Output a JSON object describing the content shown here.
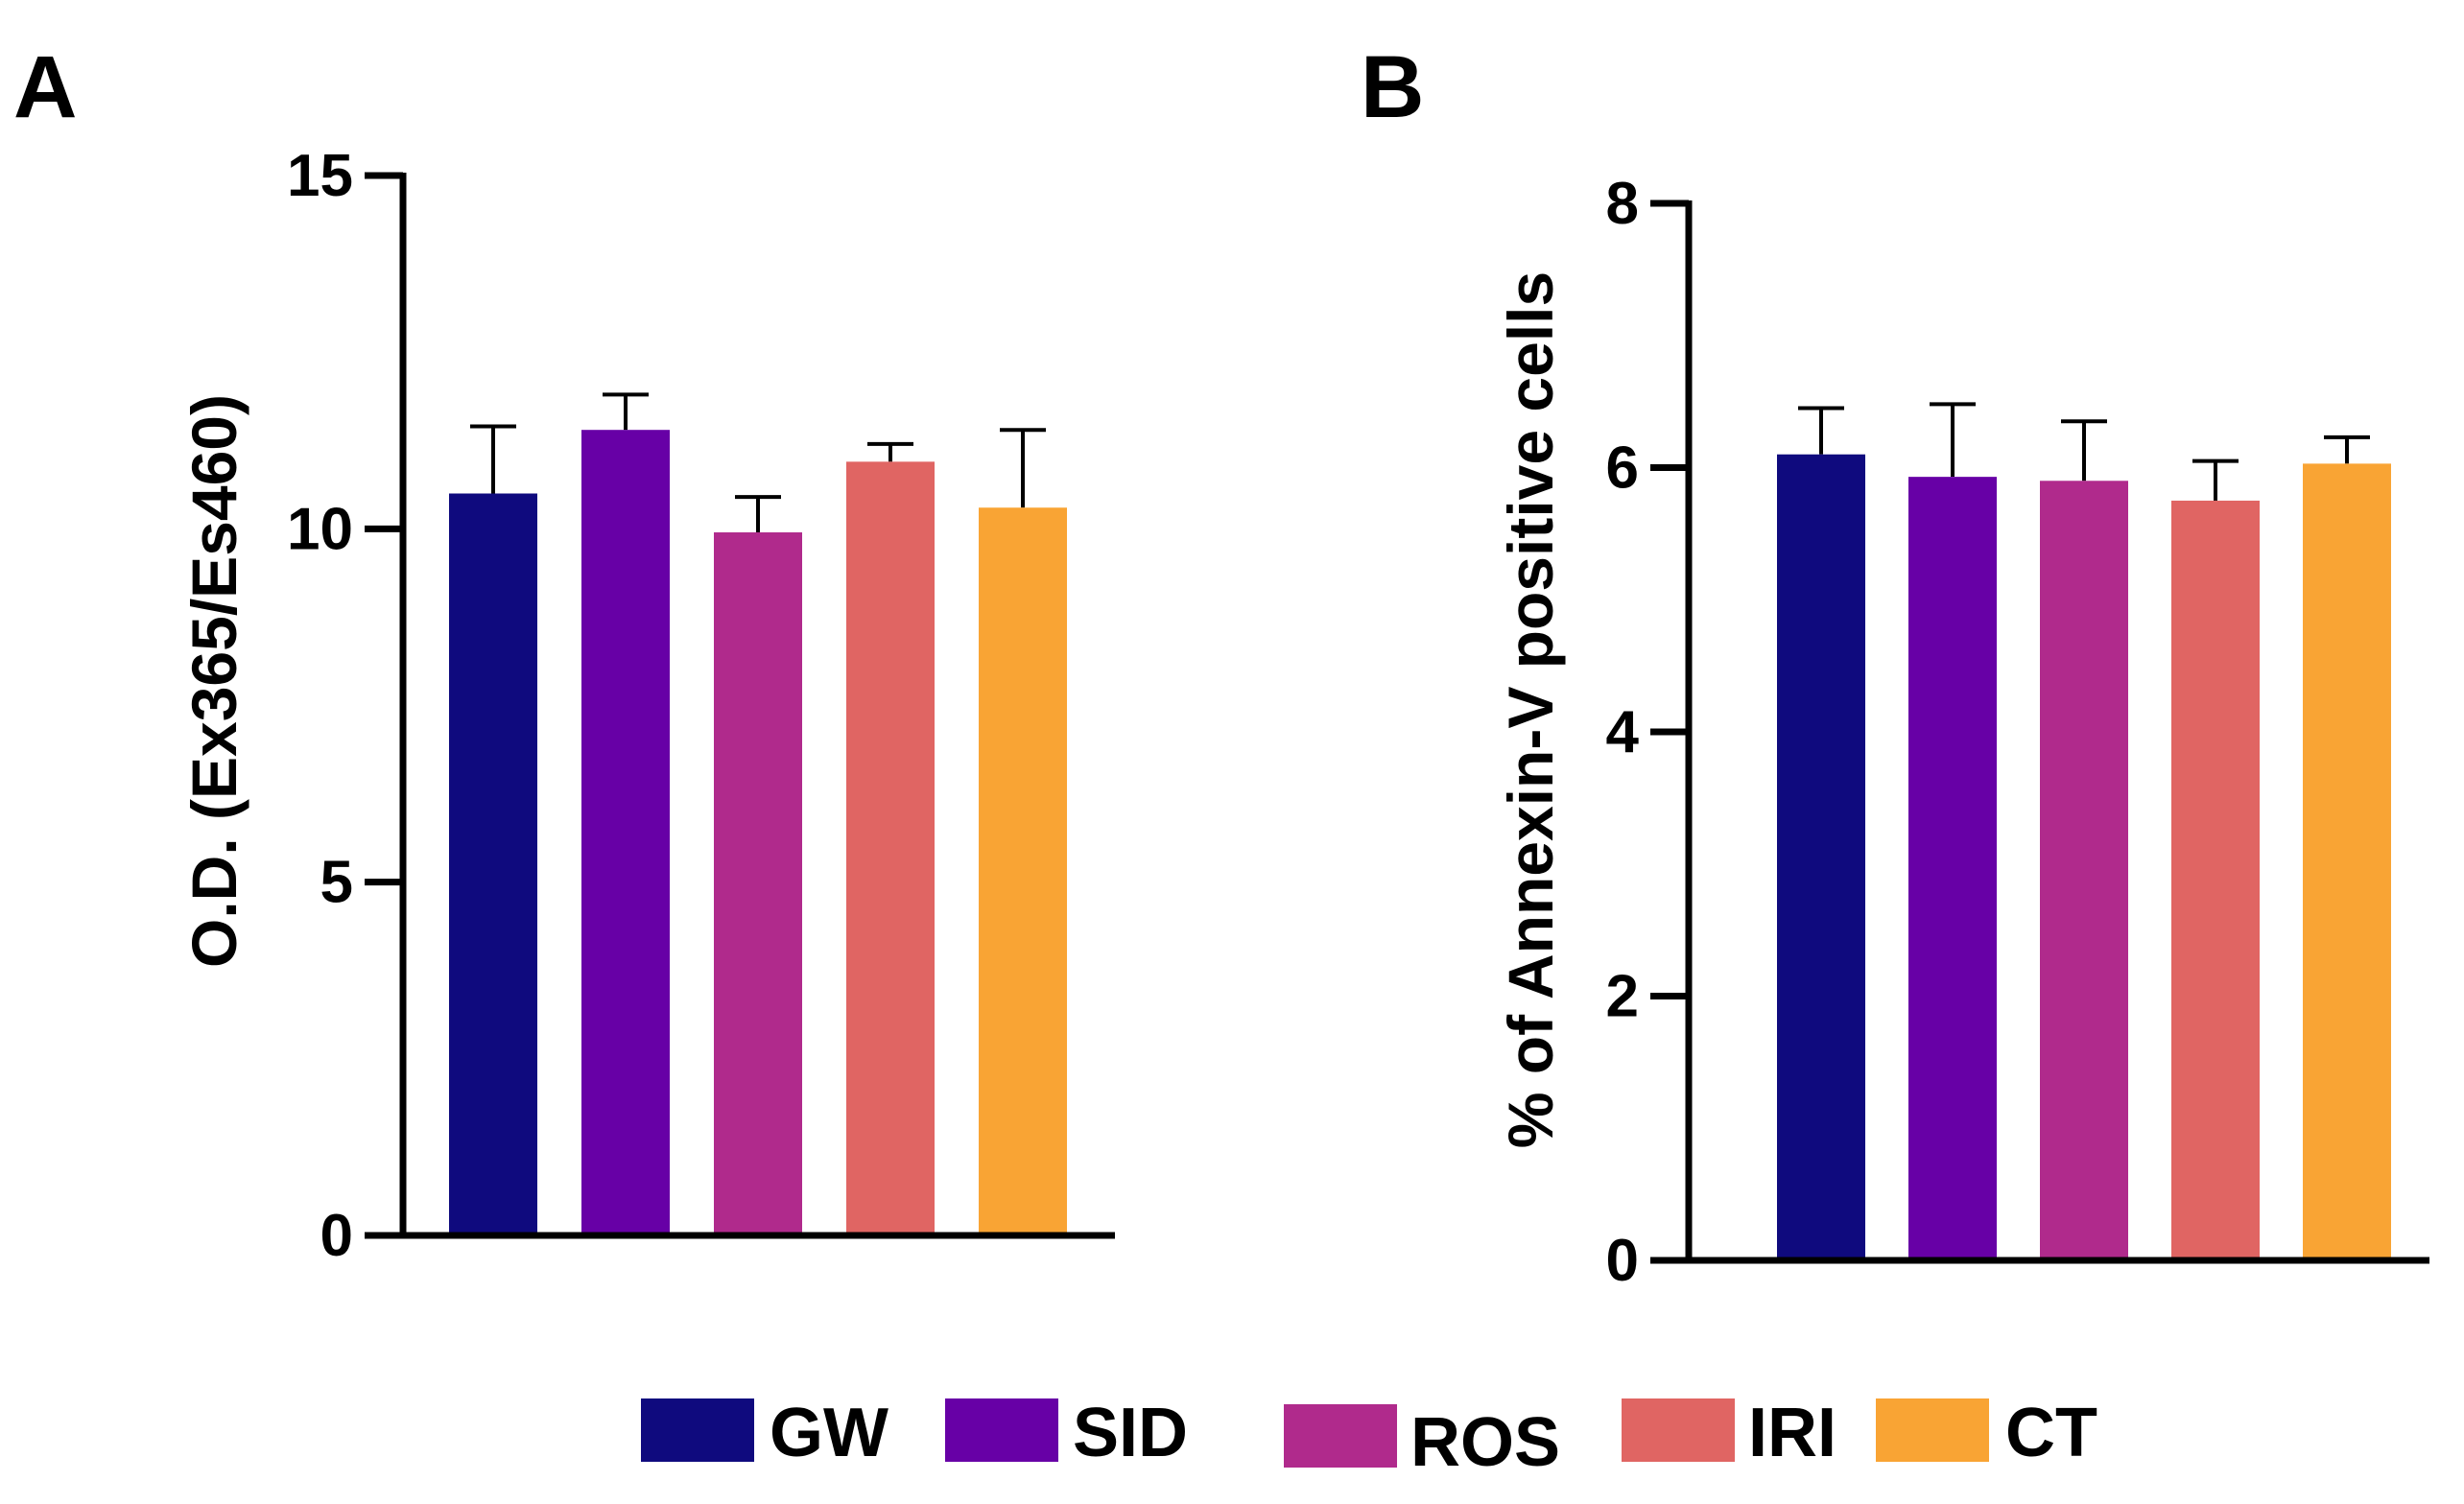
{
  "legend": {
    "items": [
      {
        "label": "GW",
        "color": "#0F0A7E"
      },
      {
        "label": "SID",
        "color": "#6700A6"
      },
      {
        "label": "ROS",
        "color": "#B02A8C"
      },
      {
        "label": "IRI",
        "color": "#E06563"
      },
      {
        "label": "CT",
        "color": "#F9A434"
      }
    ]
  },
  "chart_data": [
    {
      "panel": "A",
      "type": "bar",
      "title": "",
      "xlabel": "",
      "ylabel": "O.D. (Ex365/Es460)",
      "ylim": [
        0,
        15
      ],
      "yticks": [
        0,
        5,
        10,
        15
      ],
      "yticklabels": [
        "0",
        "5",
        "10",
        "15"
      ],
      "categories": [
        "GW",
        "SID",
        "ROS",
        "IRI",
        "CT"
      ],
      "values": [
        10.5,
        11.4,
        9.95,
        10.95,
        10.3
      ],
      "errors": [
        0.95,
        0.5,
        0.5,
        0.25,
        1.1
      ],
      "colors": [
        "#0F0A7E",
        "#6700A6",
        "#B02A8C",
        "#E06563",
        "#F9A434"
      ]
    },
    {
      "panel": "B",
      "type": "bar",
      "title": "",
      "xlabel": "",
      "ylabel": "% of Annexin-V positive cells",
      "ylim": [
        0,
        8
      ],
      "yticks": [
        0,
        2,
        4,
        6,
        8
      ],
      "yticklabels": [
        "0",
        "2",
        "4",
        "6",
        "8"
      ],
      "categories": [
        "GW",
        "SID",
        "ROS",
        "IRI",
        "CT"
      ],
      "values": [
        6.1,
        5.93,
        5.9,
        5.75,
        6.03
      ],
      "errors": [
        0.35,
        0.55,
        0.45,
        0.3,
        0.2
      ],
      "colors": [
        "#0F0A7E",
        "#6700A6",
        "#B02A8C",
        "#E06563",
        "#F9A434"
      ]
    }
  ]
}
